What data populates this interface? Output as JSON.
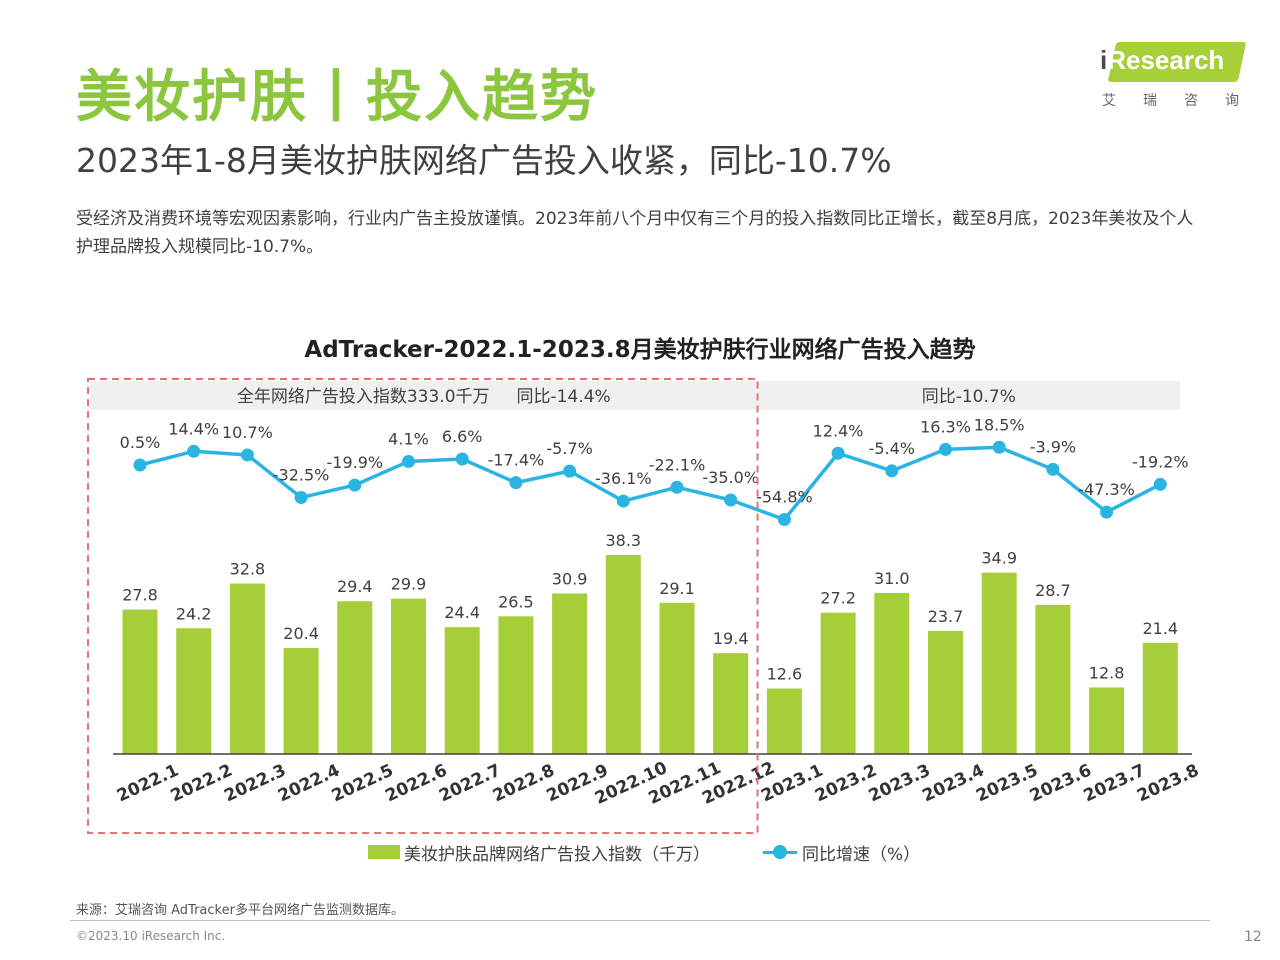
{
  "page": {
    "title": "美妆护肤丨投入趋势",
    "subtitle": "2023年1-8月美妆护肤网络广告投入收紧，同比-10.7%",
    "description": "受经济及消费环境等宏观因素影响，行业内广告主投放谨慎。2023年前八个月中仅有三个月的投入指数同比正增长，截至8月底，2023年美妆及个人护理品牌投入规模同比-10.7%。",
    "logo_text": "Research",
    "logo_prefix": "i",
    "logo_cn": "艾瑞咨询",
    "source": "来源：艾瑞咨询 AdTracker多平台网络广告监测数据库。",
    "copyright": "©2023.10 iResearch Inc.",
    "page_number": "12"
  },
  "colors": {
    "title_green": "#8cc63f",
    "bar_green": "#a6ce39",
    "line_blue": "#2ab4e4",
    "dashed_box": "#e57373",
    "band_gray": "#f0f0f0"
  },
  "chart_data": {
    "type": "bar+line",
    "title": "AdTracker-2022.1-2023.8月美妆护肤行业网络广告投入趋势",
    "categories": [
      "2022.1",
      "2022.2",
      "2022.3",
      "2022.4",
      "2022.5",
      "2022.6",
      "2022.7",
      "2022.8",
      "2022.9",
      "2022.10",
      "2022.11",
      "2022.12",
      "2023.1",
      "2023.2",
      "2023.3",
      "2023.4",
      "2023.5",
      "2023.6",
      "2023.7",
      "2023.8"
    ],
    "series": [
      {
        "name": "美妆护肤品牌网络广告投入指数（千万）",
        "type": "bar",
        "values": [
          27.8,
          24.2,
          32.8,
          20.4,
          29.4,
          29.9,
          24.4,
          26.5,
          30.9,
          38.3,
          29.1,
          19.4,
          12.6,
          27.2,
          31.0,
          23.7,
          34.9,
          28.7,
          12.8,
          21.4
        ],
        "labels": [
          "27.8",
          "24.2",
          "32.8",
          "20.4",
          "29.4",
          "29.9",
          "24.4",
          "26.5",
          "30.9",
          "38.3",
          "29.1",
          "19.4",
          "12.6",
          "27.2",
          "31.0",
          "23.7",
          "34.9",
          "28.7",
          "12.8",
          "21.4"
        ]
      },
      {
        "name": "同比增速（%）",
        "type": "line",
        "values": [
          0.5,
          14.4,
          10.7,
          -32.5,
          -19.9,
          4.1,
          6.6,
          -17.4,
          -5.7,
          -36.1,
          -22.1,
          -35.0,
          -54.8,
          12.4,
          -5.4,
          16.3,
          18.5,
          -3.9,
          -47.3,
          -19.2
        ],
        "labels": [
          "0.5%",
          "14.4%",
          "10.7%",
          "-32.5%",
          "-19.9%",
          "4.1%",
          "6.6%",
          "-17.4%",
          "-5.7%",
          "-36.1%",
          "-22.1%",
          "-35.0%",
          "-54.8%",
          "12.4%",
          "-5.4%",
          "16.3%",
          "18.5%",
          "-3.9%",
          "-47.3%",
          "-19.2%"
        ]
      }
    ],
    "annotations": {
      "band_2022": "全年网络广告投入指数333.0千万     同比-14.4%",
      "band_2023": "同比-10.7%"
    },
    "grid": false,
    "legend": "bottom"
  }
}
